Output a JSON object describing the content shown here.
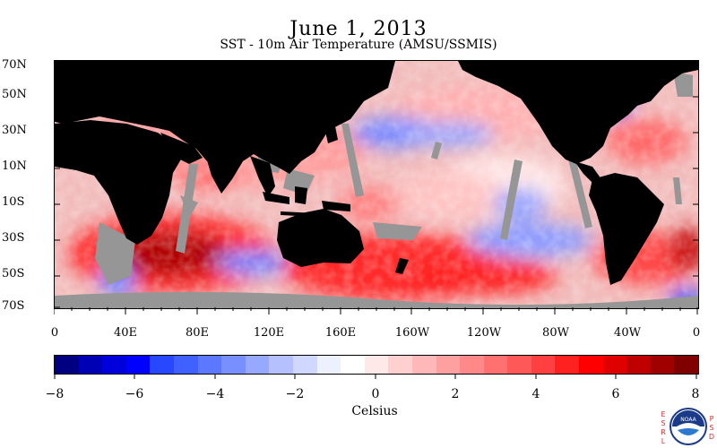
{
  "title": "June 1, 2013",
  "subtitle": "SST - 10m Air Temperature (AMSU/SSMIS)",
  "lat_labels": [
    "70N",
    "50N",
    "30N",
    "10N",
    "10S",
    "30S",
    "50S",
    "70S"
  ],
  "lon_labels": [
    "0",
    "40E",
    "80E",
    "120E",
    "160E",
    "160W",
    "120W",
    "80W",
    "40W",
    "0"
  ],
  "colorbar": {
    "ticks": [
      "−8",
      "−6",
      "−4",
      "−2",
      "0",
      "2",
      "4",
      "6",
      "8"
    ],
    "units_label": "Celsius",
    "range": [
      -8,
      8
    ],
    "colors": [
      "#000080",
      "#0000b4",
      "#0000dc",
      "#0000ff",
      "#2848ff",
      "#4060ff",
      "#5c78ff",
      "#7890ff",
      "#96a8ff",
      "#b4c0ff",
      "#d0d8ff",
      "#ecf0ff",
      "#ffffff",
      "#ffe8e8",
      "#ffd0d0",
      "#ffb8b8",
      "#ffa0a0",
      "#ff8888",
      "#ff7070",
      "#ff5858",
      "#ff4040",
      "#ff2020",
      "#ff0000",
      "#e00000",
      "#c00000",
      "#a00000",
      "#800000"
    ]
  },
  "map": {
    "land_color": "#000000",
    "no_data_color": "#969696"
  },
  "logo": {
    "name": "noaa-logo",
    "left_letters": "ESRL",
    "right_letters": "PSD",
    "text": "NOAA"
  }
}
